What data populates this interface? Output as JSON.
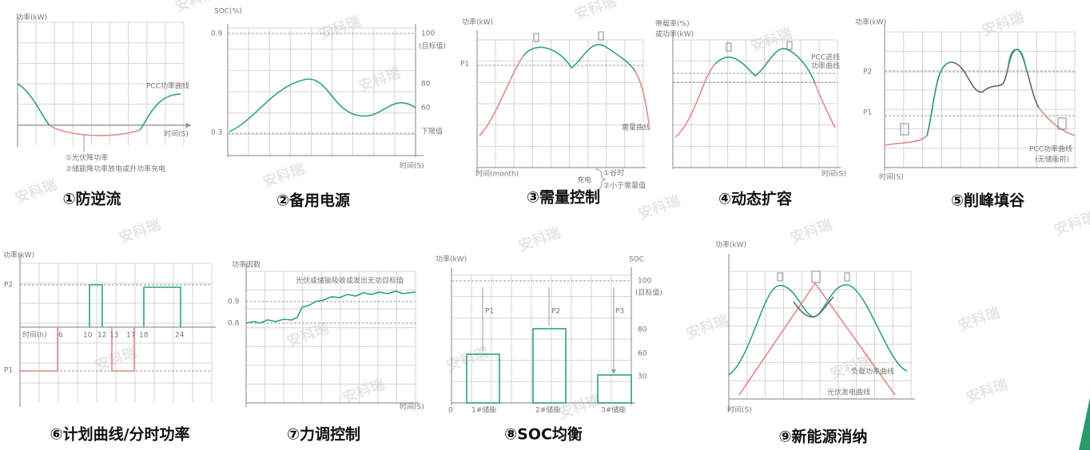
{
  "watermark": "安科瑞",
  "panels": [
    {
      "title": "①防逆流",
      "y_label": "功率(kW)",
      "x_label": "时间(S)",
      "curve_label": "PCC功率曲线",
      "notes": [
        "①光伏降功率",
        "②储能降功率放电或升功率充电"
      ]
    },
    {
      "title": "②备用电源",
      "y_label": "SOC(%)",
      "x_label": "时间(S)",
      "left_ticks": [
        "0.9",
        "0.3"
      ],
      "right_ticks": [
        "100",
        "(目标值)",
        "80",
        "60",
        "下限值"
      ]
    },
    {
      "title": "③需量控制",
      "y_label": "功率(kW)",
      "x_label": "时间(month)",
      "p1": "P1",
      "curve_label": "需量曲线",
      "charge": "充电",
      "conditions": [
        "①谷时",
        "②小于需量值"
      ]
    },
    {
      "title": "④动态扩容",
      "y_label": [
        "带载率(%)",
        "或功率(kW)"
      ],
      "x_label": "时间(S)",
      "curve_label": [
        "PCC进线",
        "功率曲线"
      ]
    },
    {
      "title": "⑤削峰填谷",
      "y_label": "功率(kW)",
      "x_label": "时间(S)",
      "levels": [
        "P2",
        "P1"
      ],
      "curve_label": [
        "PCC功率曲线",
        "(无储能前)"
      ]
    },
    {
      "title": "⑥计划曲线/分时功率",
      "y_label": "功率(kW)",
      "x_label": "时间(h)",
      "levels": [
        "P2",
        "P1"
      ],
      "x_ticks": [
        "6",
        "10",
        "12",
        "13",
        "17",
        "18",
        "24"
      ]
    },
    {
      "title": "⑦力调控制",
      "y_label": "功率因数",
      "x_label": "时间(S)",
      "left_ticks": [
        "0.9",
        "0.8"
      ],
      "curve_label": "光伏或储能吸收或发出无功目标值"
    },
    {
      "title": "⑧SOC均衡",
      "y_label": "功率(kW)",
      "y2_label": "SOC",
      "right_ticks": [
        "100",
        "(目标值)",
        "80",
        "60",
        "30"
      ],
      "bar_labels": [
        "P1",
        "P2",
        "P3"
      ],
      "origin": "0",
      "categories": [
        "1#储能",
        "2#储能",
        "3#储能"
      ]
    },
    {
      "title": "⑨新能源消纳",
      "y_label": "功率(kW)",
      "x_label": "时间(S)",
      "curve_labels": [
        "负载功率曲线",
        "光伏发电曲线"
      ]
    }
  ]
}
